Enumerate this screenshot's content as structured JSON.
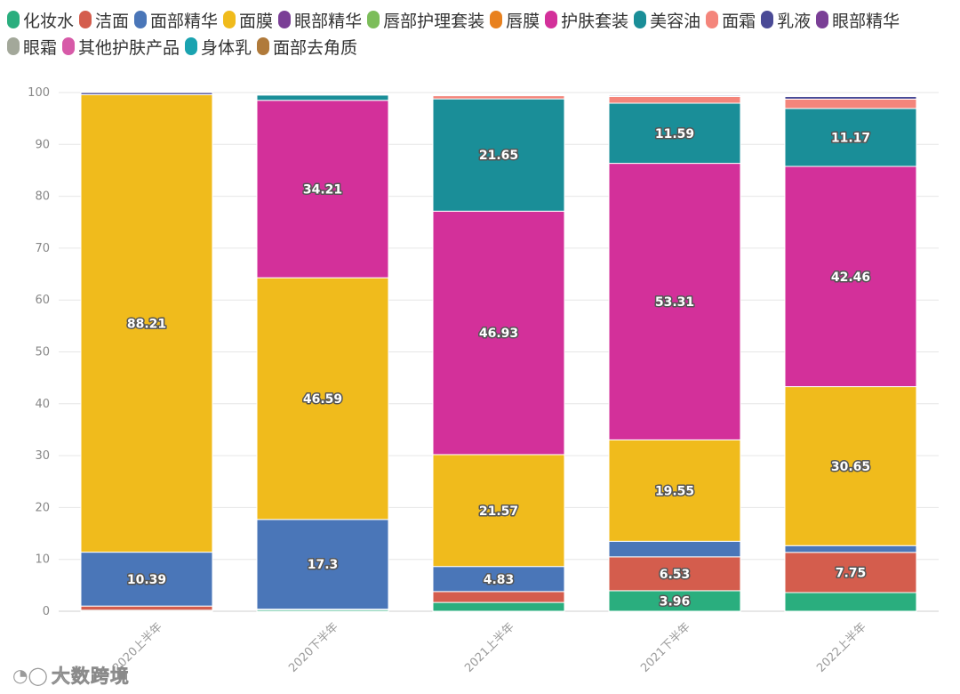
{
  "chart_data": {
    "type": "bar",
    "stacked": true,
    "legend_position": "top",
    "ylim": [
      0,
      100
    ],
    "yticks": [
      0,
      10,
      20,
      30,
      40,
      50,
      60,
      70,
      80,
      90,
      100
    ],
    "grid": true,
    "categories": [
      "2020上半年",
      "2020下半年",
      "2021上半年",
      "2021下半年",
      "2022上半年"
    ],
    "series": [
      {
        "name": "化妆水",
        "color": "#2aae7e",
        "values": [
          0.2,
          0.3,
          1.7,
          3.96,
          3.6
        ]
      },
      {
        "name": "洁面",
        "color": "#d45d4d",
        "values": [
          0.8,
          0.1,
          2.1,
          6.53,
          7.75
        ]
      },
      {
        "name": "面部精华",
        "color": "#4a76b8",
        "values": [
          10.39,
          17.3,
          4.83,
          3.0,
          1.3
        ]
      },
      {
        "name": "面膜",
        "color": "#f0bb1c",
        "values": [
          88.21,
          46.59,
          21.57,
          19.55,
          30.65
        ]
      },
      {
        "name": "眼部精华",
        "color": "#7a3f96",
        "values": [
          0,
          0,
          0,
          0,
          0
        ]
      },
      {
        "name": "唇部护理套装",
        "color": "#7cbd5a",
        "values": [
          0,
          0,
          0,
          0,
          0
        ]
      },
      {
        "name": "唇膜",
        "color": "#e8811f",
        "values": [
          0,
          0,
          0,
          0,
          0
        ]
      },
      {
        "name": "护肤套装",
        "color": "#d3309a",
        "values": [
          0,
          34.21,
          46.93,
          53.31,
          42.46
        ]
      },
      {
        "name": "美容油",
        "color": "#1a8e98",
        "values": [
          0,
          1.0,
          21.65,
          11.59,
          11.17
        ]
      },
      {
        "name": "面霜",
        "color": "#f4857b",
        "values": [
          0,
          0,
          0.6,
          1.3,
          1.8
        ]
      },
      {
        "name": "乳液",
        "color": "#4a4a96",
        "values": [
          0.4,
          0,
          0,
          0.2,
          0.5
        ]
      },
      {
        "name": "眼部精华",
        "color": "#7a3f96",
        "values": [
          0,
          0,
          0,
          0,
          0
        ]
      },
      {
        "name": "眼霜",
        "color": "#a3a89a",
        "values": [
          0,
          0,
          0,
          0,
          0
        ]
      },
      {
        "name": "其他护肤产品",
        "color": "#d75aa8",
        "values": [
          0,
          0,
          0,
          0,
          0
        ]
      },
      {
        "name": "身体乳",
        "color": "#1aa3b0",
        "values": [
          0,
          0,
          0,
          0,
          0
        ]
      },
      {
        "name": "面部去角质",
        "color": "#b07a3a",
        "values": [
          0,
          0,
          0,
          0,
          0
        ]
      }
    ],
    "data_labels": [
      {
        "series": "面部精华",
        "category": "2020上半年",
        "text": "10.39"
      },
      {
        "series": "面膜",
        "category": "2020上半年",
        "text": "88.21"
      },
      {
        "series": "面部精华",
        "category": "2020下半年",
        "text": "17.3"
      },
      {
        "series": "面膜",
        "category": "2020下半年",
        "text": "46.59"
      },
      {
        "series": "护肤套装",
        "category": "2020下半年",
        "text": "34.21"
      },
      {
        "series": "面部精华",
        "category": "2021上半年",
        "text": "4.83"
      },
      {
        "series": "面膜",
        "category": "2021上半年",
        "text": "21.57"
      },
      {
        "series": "护肤套装",
        "category": "2021上半年",
        "text": "46.93"
      },
      {
        "series": "美容油",
        "category": "2021上半年",
        "text": "21.65"
      },
      {
        "series": "化妆水",
        "category": "2021下半年",
        "text": "3.96"
      },
      {
        "series": "洁面",
        "category": "2021下半年",
        "text": "6.53"
      },
      {
        "series": "面膜",
        "category": "2021下半年",
        "text": "19.55"
      },
      {
        "series": "护肤套装",
        "category": "2021下半年",
        "text": "53.31"
      },
      {
        "series": "美容油",
        "category": "2021下半年",
        "text": "11.59"
      },
      {
        "series": "洁面",
        "category": "2022上半年",
        "text": "7.75"
      },
      {
        "series": "面膜",
        "category": "2022上半年",
        "text": "30.65"
      },
      {
        "series": "护肤套装",
        "category": "2022上半年",
        "text": "42.46"
      },
      {
        "series": "美容油",
        "category": "2022上半年",
        "text": "11.17"
      }
    ]
  },
  "watermark": {
    "text": "大数跨境",
    "icon": "logo-icon"
  }
}
